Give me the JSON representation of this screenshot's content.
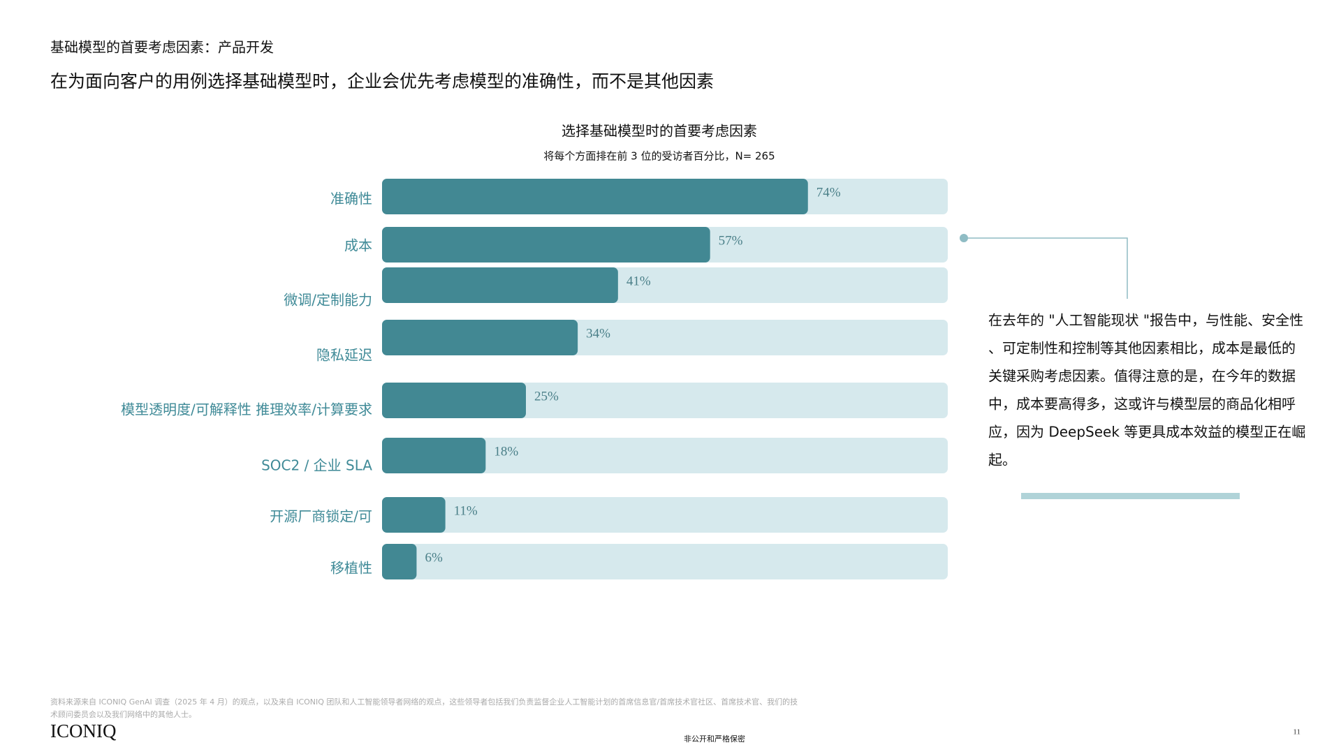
{
  "header": {
    "section": "基础模型的首要考虑因素：产品开发",
    "headline": "在为面向客户的用例选择基础模型时，企业会优先考虑模型的准确性，而不是其他因素"
  },
  "chart_data": {
    "type": "bar",
    "orientation": "horizontal",
    "title": "选择基础模型时的首要考虑因素",
    "subtitle": "将每个方面排在前 3 位的受访者百分比，N= 265",
    "categories": [
      "准确性",
      "成本",
      "微调/定制能力",
      "隐私延迟",
      "模型透明度/可解释性 推理效率/计算要求",
      "SOC2 / 企业 SLA",
      "开源厂商锁定/可",
      "移植性"
    ],
    "values": [
      74,
      57,
      41,
      34,
      25,
      18,
      11,
      6
    ],
    "value_labels": [
      "74%",
      "57%",
      "41%",
      "34%",
      "25%",
      "18%",
      "11%",
      "6%"
    ],
    "color": "#428893",
    "xlim": [
      0,
      100
    ]
  },
  "note": {
    "lines": [
      "在去年的 \"人工智能现状 \"报告中，与性能、安全性",
      "、可定制性和控制等其他因素相比，成本是最低的",
      "关键采购考虑因素。值得注意的是，在今年的数据",
      "中，成本要高得多，这或许与模型层的商品化相呼",
      "应，因为 DeepSeek 等更具成本效益的模型正在崛",
      "起。"
    ]
  },
  "footer": {
    "source": [
      "资料来源来自 ICONIQ GenAI 调查（2025 年 4 月）的观点，以及来自 ICONIQ 团队和人工智能领导者网络的观点，这些领导者包括我们负责监督企业人工智能计划的首席信息官/首席技术官社区、首席技术官、我们的技",
      "术顾问委员会以及我们网络中的其他人士。"
    ],
    "logo": "ICONIQ",
    "confidential": "非公开和严格保密",
    "page": "11"
  }
}
